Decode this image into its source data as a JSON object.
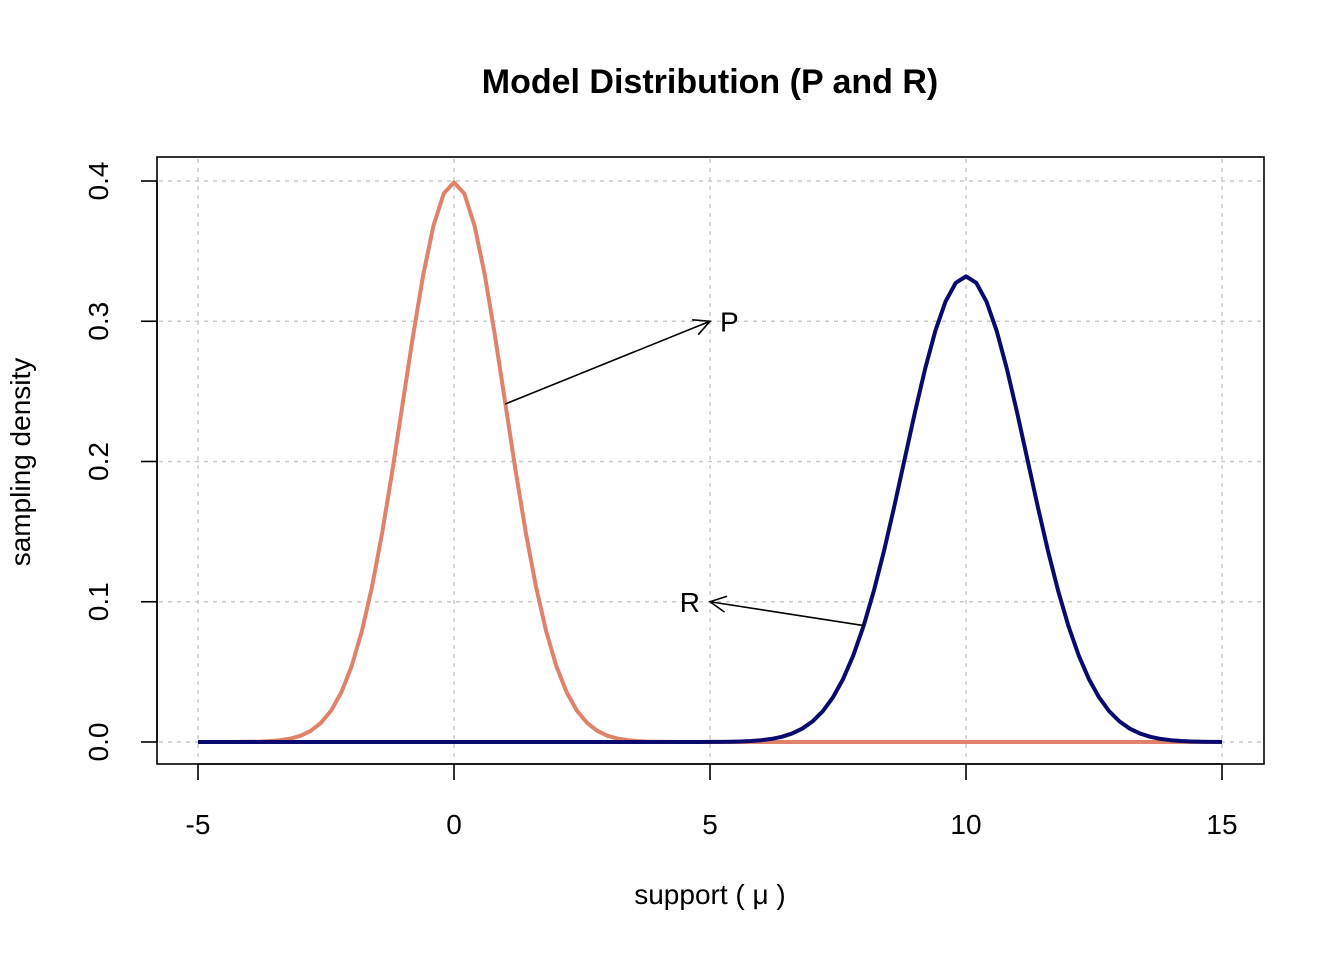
{
  "chart_data": {
    "type": "line",
    "title": "Model Distribution (P and R)",
    "xlabel": "support ( μ )",
    "ylabel": "sampling density",
    "xlim": [
      -5,
      15
    ],
    "ylim": [
      0,
      0.4
    ],
    "x_ticks": [
      "-5",
      "0",
      "5",
      "10",
      "15"
    ],
    "y_ticks": [
      "0.0",
      "0.1",
      "0.2",
      "0.3",
      "0.4"
    ],
    "grid": true,
    "series": [
      {
        "name": "P",
        "color": "#E0826A",
        "distribution": "normal",
        "mean": 0,
        "sd": 1,
        "peak": 0.399
      },
      {
        "name": "R",
        "color": "#0A0A6E",
        "distribution": "normal",
        "mean": 10,
        "sd": 1.2,
        "peak": 0.332
      }
    ],
    "annotations": [
      {
        "text": "P",
        "point_x": 1.0,
        "point_y": 0.241,
        "label_x": 5.0,
        "label_y": 0.3
      },
      {
        "text": "R",
        "point_x": 8.0,
        "point_y": 0.083,
        "label_x": 5.0,
        "label_y": 0.1
      }
    ]
  }
}
